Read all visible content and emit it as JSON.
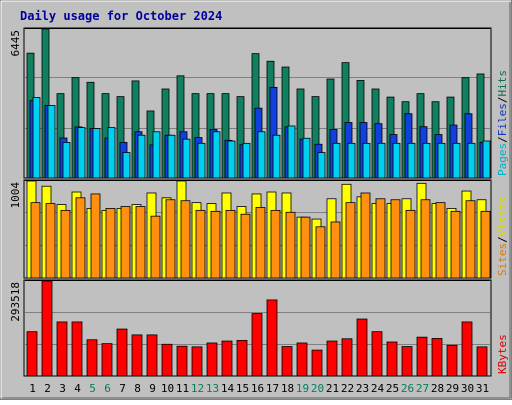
{
  "chart_data": {
    "title": "Daily usage for October 2024",
    "type": "bar",
    "x": [
      "1",
      "2",
      "3",
      "4",
      "5",
      "6",
      "7",
      "8",
      "9",
      "10",
      "11",
      "12",
      "13",
      "14",
      "15",
      "16",
      "17",
      "18",
      "19",
      "20",
      "21",
      "22",
      "23",
      "24",
      "25",
      "26",
      "27",
      "28",
      "29",
      "30",
      "31"
    ],
    "weekend_days": [
      "5",
      "6",
      "12",
      "13",
      "19",
      "20",
      "26",
      "27"
    ],
    "panels": [
      {
        "id": "top",
        "max_label": "6445",
        "ymax": 6445,
        "side_label_parts": [
          "Pages",
          "/",
          "Files",
          "/",
          "Hits"
        ],
        "series": [
          {
            "name": "Hits",
            "color": "#108060",
            "values": [
              5400,
              6445,
              3650,
              4340,
              4140,
              3650,
              3520,
              4200,
              2900,
              3850,
              4420,
              3650,
              3650,
              3650,
              3520,
              5380,
              5050,
              4800,
              3850,
              3520,
              4280,
              4990,
              4220,
              3850,
              3500,
              3300,
              3650,
              3300,
              3500,
              4340,
              4500
            ]
          },
          {
            "name": "Files",
            "color": "#1040e0",
            "values": [
              3350,
              3140,
              1730,
              2210,
              2140,
              1730,
              1540,
              2000,
              1430,
              1850,
              2000,
              1750,
              2100,
              1630,
              1440,
              3020,
              3920,
              2210,
              1680,
              1460,
              2100,
              2400,
              2400,
              2350,
              1880,
              2780,
              2220,
              1880,
              2290,
              2780,
              1540
            ]
          },
          {
            "name": "Pages",
            "color": "#00d0f0",
            "values": [
              3480,
              3140,
              1540,
              2180,
              2140,
              2180,
              1100,
              1850,
              2000,
              1850,
              1680,
              1500,
              2000,
              1600,
              1500,
              2000,
              1850,
              2250,
              1720,
              1100,
              1500,
              1500,
              1500,
              1500,
              1500,
              1500,
              1500,
              1500,
              1500,
              1500,
              1600
            ]
          }
        ]
      },
      {
        "id": "mid",
        "max_label": "1004",
        "ymax": 1004,
        "side_label_parts": [
          "Sites",
          "/",
          "Visits"
        ],
        "series": [
          {
            "name": "Visits",
            "color": "#ffff00",
            "values": [
              1004,
              950,
              760,
              890,
              720,
              700,
              720,
              760,
              880,
              830,
              1004,
              780,
              770,
              880,
              740,
              870,
              890,
              880,
              630,
              610,
              820,
              970,
              840,
              770,
              770,
              820,
              980,
              770,
              720,
              900,
              810
            ]
          },
          {
            "name": "Sites",
            "color": "#ff9010",
            "values": [
              780,
              770,
              700,
              830,
              870,
              720,
              740,
              740,
              640,
              810,
              800,
              700,
              690,
              700,
              660,
              730,
              700,
              680,
              630,
              530,
              580,
              780,
              880,
              820,
              810,
              700,
              810,
              780,
              690,
              800,
              690
            ]
          }
        ]
      },
      {
        "id": "bottom",
        "max_label": "293518",
        "ymax": 293518,
        "side_label_parts": [
          "KBytes"
        ],
        "series": [
          {
            "name": "KBytes",
            "color": "#ff0000",
            "values": [
              137000,
              293518,
              167000,
              167000,
              112000,
              100000,
              145000,
              127000,
              127000,
              98000,
              92000,
              90000,
              102000,
              108000,
              110000,
              193000,
              235000,
              91000,
              102000,
              80000,
              108000,
              115000,
              176000,
              137000,
              105000,
              91000,
              120000,
              116000,
              95000,
              167000,
              90000
            ]
          }
        ]
      }
    ],
    "colors": {
      "title": "#0000a0",
      "background": "#c0c0c0",
      "weekday_tick": "#000000",
      "weekend_tick": "#008060",
      "separator": "#000000"
    }
  }
}
